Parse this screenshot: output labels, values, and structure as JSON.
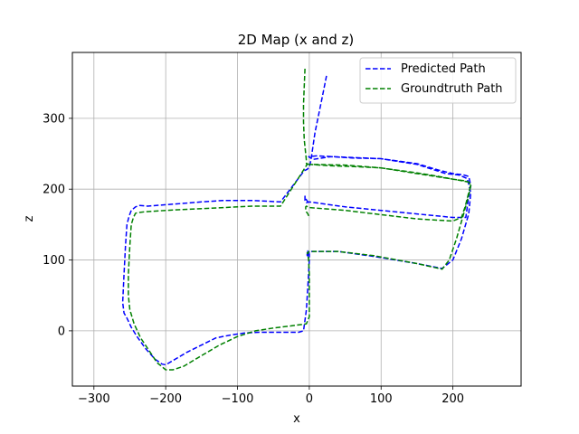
{
  "chart_data": {
    "type": "line",
    "title": "2D Map (x and z)",
    "xlabel": "x",
    "ylabel": "z",
    "xlim": [
      -330,
      295
    ],
    "ylim": [
      -78,
      393
    ],
    "xticks": [
      -300,
      -200,
      -100,
      0,
      100,
      200
    ],
    "yticks": [
      0,
      100,
      200,
      300
    ],
    "grid": true,
    "legend_position": "top-right",
    "series": [
      {
        "name": "Predicted Path",
        "color": "#0000ff",
        "style": "dashed",
        "x": [
          24,
          18,
          12,
          8,
          5,
          3,
          2,
          1,
          0,
          -1,
          -3,
          -5,
          -7,
          -40,
          -80,
          -120,
          -150,
          -175,
          -200,
          -225,
          -236,
          -242,
          -248,
          -251,
          -254,
          -256,
          -258,
          -260,
          -258,
          -254,
          -248,
          -240,
          -228,
          -215,
          -205,
          -200,
          -190,
          -170,
          -150,
          -130,
          -110,
          -90,
          -70,
          -50,
          -30,
          -15,
          -8,
          -4,
          -1,
          0,
          0,
          -1,
          -1,
          -2,
          -2,
          -3,
          -3,
          0,
          40,
          90,
          150,
          185,
          200,
          212,
          222,
          225,
          220,
          208,
          190,
          150,
          100,
          50,
          10,
          -1,
          0,
          2,
          5,
          30,
          60,
          100,
          150,
          180,
          200,
          215,
          222,
          225,
          222,
          220,
          218,
          200,
          150,
          100,
          50,
          0,
          -4,
          -6,
          -6,
          -4,
          -2,
          0,
          2
        ],
        "y": [
          360,
          330,
          300,
          280,
          260,
          246,
          240,
          235,
          232,
          230,
          228,
          227,
          226,
          182,
          184,
          184,
          182,
          180,
          178,
          176,
          177,
          175,
          170,
          162,
          150,
          120,
          80,
          40,
          25,
          18,
          5,
          -8,
          -25,
          -40,
          -47,
          -48,
          -42,
          -30,
          -20,
          -10,
          -6,
          -3,
          -2,
          -2,
          -2,
          -2,
          0,
          30,
          80,
          100,
          108,
          112,
          113,
          113,
          112,
          108,
          104,
          112,
          112,
          105,
          95,
          88,
          100,
          130,
          165,
          195,
          215,
          220,
          222,
          235,
          243,
          245,
          247,
          246,
          245,
          244,
          242,
          246,
          244,
          243,
          236,
          227,
          222,
          220,
          218,
          205,
          190,
          175,
          160,
          160,
          165,
          170,
          175,
          182,
          181,
          184,
          190,
          185,
          182,
          181,
          180
        ]
      },
      {
        "name": "Groundtruth Path",
        "color": "#008000",
        "style": "dashed",
        "x": [
          -6,
          -7,
          -8,
          -8,
          -7,
          -5,
          -4,
          -4,
          -4,
          -3,
          -40,
          -80,
          -120,
          -160,
          -200,
          -230,
          -238,
          -242,
          -245,
          -248,
          -250,
          -252,
          -252,
          -250,
          -244,
          -235,
          -225,
          -212,
          -200,
          -190,
          -175,
          -150,
          -125,
          -100,
          -75,
          -50,
          -25,
          -10,
          -4,
          0,
          0,
          0,
          -1,
          -2,
          -2,
          -3,
          0,
          40,
          90,
          150,
          185,
          195,
          205,
          215,
          222,
          225,
          222,
          212,
          195,
          150,
          100,
          50,
          0,
          -4,
          -3,
          0,
          30,
          60,
          100,
          150,
          180,
          200,
          215,
          222,
          225,
          222,
          217,
          212,
          200,
          150,
          100,
          50,
          0,
          -4,
          -5,
          -5,
          -4,
          -2,
          0
        ],
        "y": [
          370,
          345,
          320,
          295,
          270,
          250,
          240,
          237,
          236,
          235,
          176,
          176,
          174,
          172,
          170,
          168,
          167,
          166,
          160,
          150,
          120,
          80,
          50,
          30,
          10,
          -10,
          -25,
          -45,
          -55,
          -55,
          -50,
          -35,
          -20,
          -8,
          0,
          4,
          7,
          9,
          10,
          20,
          50,
          80,
          100,
          108,
          110,
          110,
          112,
          112,
          106,
          95,
          87,
          100,
          130,
          165,
          192,
          205,
          210,
          212,
          215,
          222,
          230,
          234,
          235,
          236,
          235,
          235,
          233,
          232,
          230,
          223,
          218,
          214,
          212,
          210,
          206,
          195,
          175,
          160,
          155,
          158,
          164,
          170,
          174,
          176,
          175,
          172,
          168,
          165,
          160
        ]
      }
    ]
  }
}
